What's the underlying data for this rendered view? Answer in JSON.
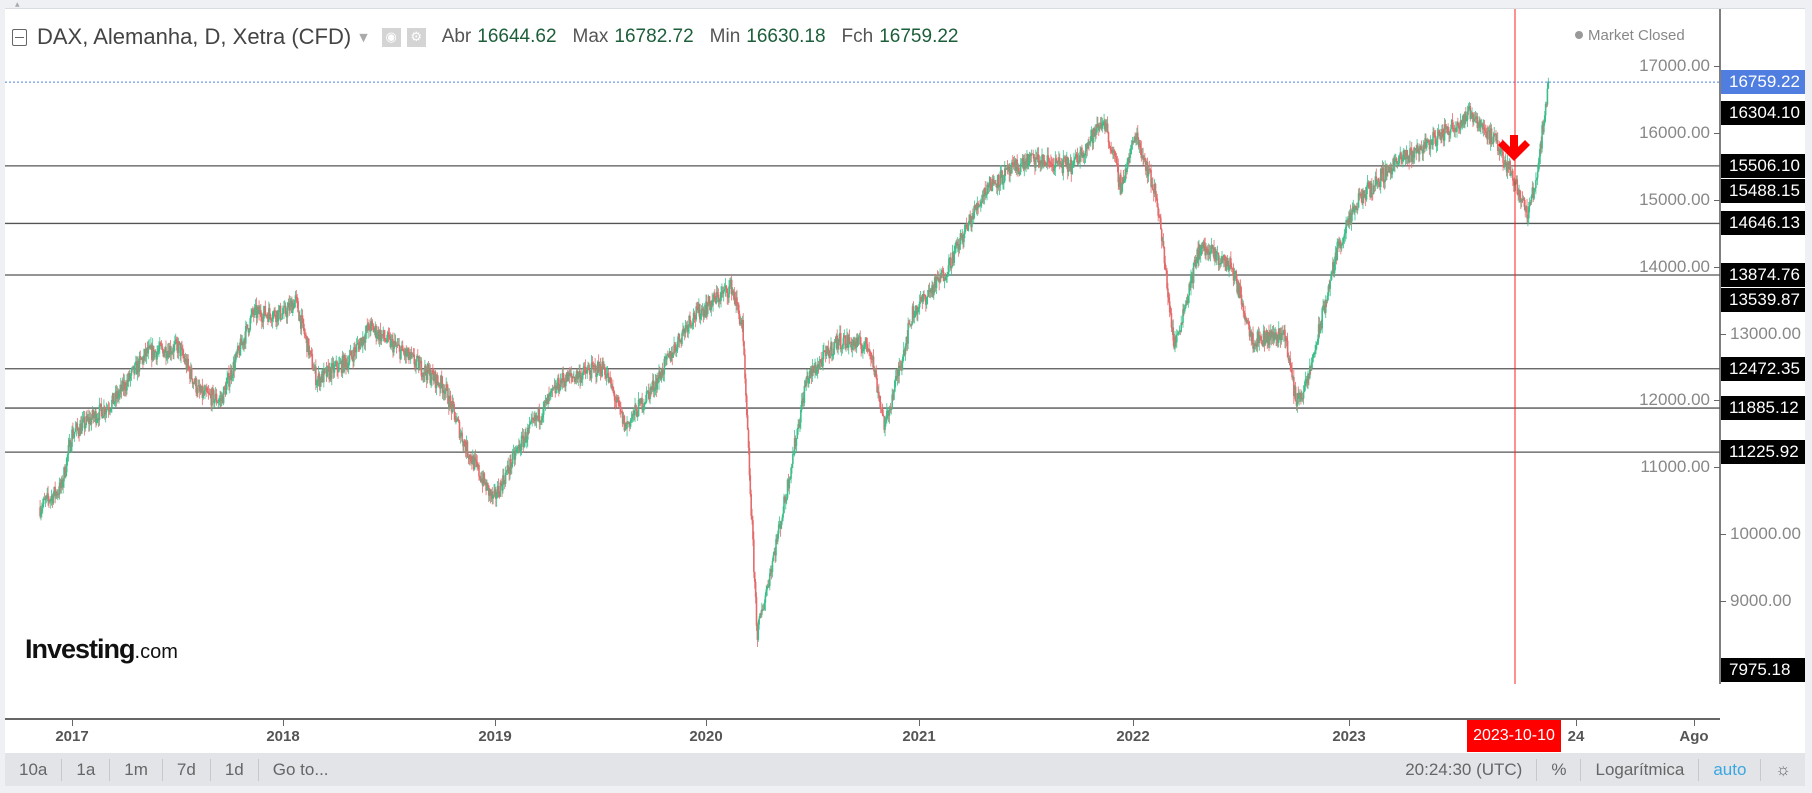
{
  "header": {
    "symbol": "DAX, Alemanha, D, Xetra (CFD)",
    "open_label": "Abr",
    "open": "16644.62",
    "high_label": "Max",
    "high": "16782.72",
    "low_label": "Min",
    "low": "16630.18",
    "close_label": "Fch",
    "close": "16759.22",
    "status": "Market Closed"
  },
  "logo": {
    "brand": "Investing",
    "suffix": ".com"
  },
  "price_axis": {
    "ticks": [
      "17000.00",
      "16000.00",
      "15000.00",
      "14000.00",
      "13000.00",
      "12000.00",
      "11000.00",
      "10000.00",
      "9000.00"
    ],
    "current": "16759.22",
    "labels": [
      "16304.10",
      "15506.10",
      "15488.15",
      "14646.13",
      "13874.76",
      "13539.87",
      "12472.35",
      "11885.12",
      "11225.92",
      "7975.18"
    ]
  },
  "time_axis": {
    "labels": [
      "2017",
      "2018",
      "2019",
      "2020",
      "2021",
      "2022",
      "2023",
      "24",
      "Ago"
    ],
    "crosshair_date": "2023-10-10"
  },
  "toolbar": {
    "ranges": [
      "10a",
      "1a",
      "1m",
      "7d",
      "1d"
    ],
    "goto": "Go to...",
    "time": "20:24:30 (UTC)",
    "percent": "%",
    "log": "Logarítmica",
    "auto": "auto"
  },
  "colors": {
    "up": "#3cbf8a",
    "down": "#e36b6b",
    "crosshair": "#ff2020",
    "current": "#4f7ee0",
    "arrow": "#ff0000"
  },
  "chart_data": {
    "type": "candlestick",
    "title": "DAX, Alemanha, D, Xetra (CFD)",
    "ylim": [
      7500,
      17500
    ],
    "horizontal_lines": [
      15506.1,
      14646.13,
      13874.76,
      12472.35,
      11885.12,
      11225.92
    ],
    "marker": {
      "type": "down-arrow",
      "date": 2023.78,
      "price": 15700
    },
    "price_path": [
      [
        2016.85,
        10400
      ],
      [
        2016.95,
        10700
      ],
      [
        2017.0,
        11500
      ],
      [
        2017.2,
        12000
      ],
      [
        2017.35,
        12700
      ],
      [
        2017.5,
        12800
      ],
      [
        2017.6,
        12100
      ],
      [
        2017.7,
        12000
      ],
      [
        2017.85,
        13300
      ],
      [
        2018.0,
        13300
      ],
      [
        2018.05,
        13500
      ],
      [
        2018.15,
        12300
      ],
      [
        2018.3,
        12600
      ],
      [
        2018.4,
        13100
      ],
      [
        2018.6,
        12600
      ],
      [
        2018.75,
        12200
      ],
      [
        2018.85,
        11300
      ],
      [
        2018.98,
        10500
      ],
      [
        2019.1,
        11300
      ],
      [
        2019.3,
        12300
      ],
      [
        2019.5,
        12500
      ],
      [
        2019.6,
        11600
      ],
      [
        2019.75,
        12300
      ],
      [
        2019.9,
        13200
      ],
      [
        2020.1,
        13700
      ],
      [
        2020.15,
        13100
      ],
      [
        2020.22,
        8500
      ],
      [
        2020.35,
        10500
      ],
      [
        2020.45,
        12300
      ],
      [
        2020.6,
        12900
      ],
      [
        2020.75,
        12800
      ],
      [
        2020.82,
        11600
      ],
      [
        2020.95,
        13300
      ],
      [
        2021.1,
        13900
      ],
      [
        2021.3,
        15200
      ],
      [
        2021.5,
        15600
      ],
      [
        2021.7,
        15500
      ],
      [
        2021.85,
        16200
      ],
      [
        2021.93,
        15200
      ],
      [
        2022.0,
        16000
      ],
      [
        2022.1,
        15000
      ],
      [
        2022.18,
        12800
      ],
      [
        2022.3,
        14300
      ],
      [
        2022.45,
        14000
      ],
      [
        2022.55,
        12900
      ],
      [
        2022.7,
        13000
      ],
      [
        2022.75,
        12000
      ],
      [
        2022.8,
        12200
      ],
      [
        2022.95,
        14300
      ],
      [
        2023.05,
        15000
      ],
      [
        2023.2,
        15500
      ],
      [
        2023.4,
        15900
      ],
      [
        2023.58,
        16300
      ],
      [
        2023.7,
        15800
      ],
      [
        2023.78,
        15300
      ],
      [
        2023.84,
        14750
      ],
      [
        2023.88,
        15300
      ],
      [
        2023.94,
        16759
      ]
    ]
  }
}
